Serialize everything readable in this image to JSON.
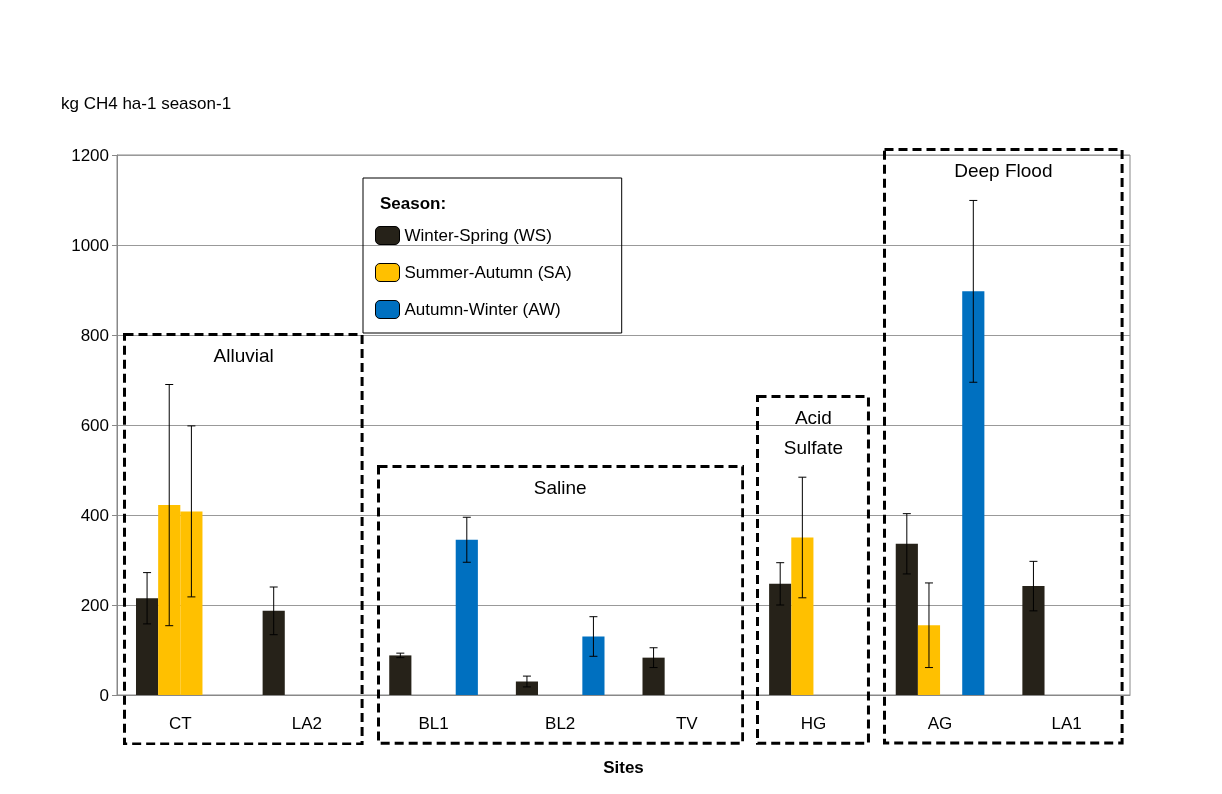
{
  "chart_data": {
    "type": "bar",
    "xlabel": "Sites",
    "ylabel": "kg CH4 ha-1 season-1",
    "legend_title": "Season:",
    "categories": [
      "CT",
      "LA2",
      "BL1",
      "BL2",
      "TV",
      "HG",
      "AG",
      "LA1"
    ],
    "series": [
      {
        "name": "Winter-Spring (WS)",
        "color": "#262219",
        "values": [
          215,
          187,
          88,
          30,
          83,
          247,
          336,
          242
        ],
        "errors": [
          57,
          53,
          5,
          12,
          22,
          47,
          67,
          55
        ]
      },
      {
        "name": "Summer-Autumn (SA)",
        "color": "#ffc000",
        "values": [
          422,
          null,
          null,
          null,
          null,
          350,
          155,
          null
        ],
        "errors": [
          268,
          null,
          null,
          null,
          null,
          134,
          94,
          null
        ]
      },
      {
        "color": "#ffc000",
        "values": [
          408,
          null,
          null,
          null,
          null,
          null,
          null,
          null
        ],
        "errors": [
          190,
          null,
          null,
          null,
          null,
          null,
          null,
          null
        ]
      },
      {
        "name": "Autumn-Winter (AW)",
        "color": "#0070c0",
        "values": [
          null,
          null,
          345,
          130,
          null,
          null,
          897,
          null
        ],
        "errors": [
          null,
          null,
          50,
          44,
          null,
          null,
          202,
          null
        ]
      }
    ],
    "ylim": [
      0,
      1200
    ],
    "yticks": [
      0,
      200,
      400,
      600,
      800,
      1000,
      1200
    ],
    "grid": "y",
    "legend": "top",
    "annotations": [
      "Alluvial",
      "Saline",
      "Acid Sulfate",
      "Deep Flood"
    ]
  }
}
